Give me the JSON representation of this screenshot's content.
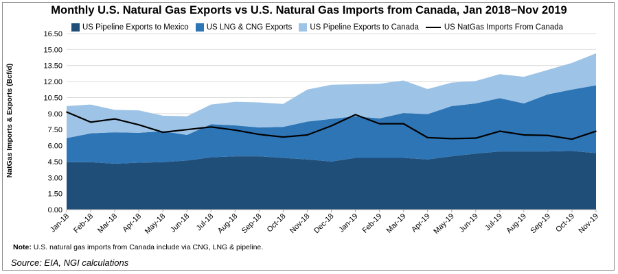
{
  "chart_data": {
    "type": "area",
    "title": "Monthly U.S. Natural Gas Exports vs U.S. Natural Gas Imports from Canada, Jan 2018−Nov 2019",
    "ylabel": "NatGas Imports & Exports (Bcf/d)",
    "xlabel": "",
    "ylim": [
      0,
      16.5
    ],
    "yticks": [
      "0.00",
      "1.50",
      "3.00",
      "4.50",
      "6.00",
      "7.50",
      "9.00",
      "10.50",
      "12.00",
      "13.50",
      "15.00",
      "16.50"
    ],
    "grid": true,
    "legend_position": "top",
    "categories": [
      "Jan-18",
      "Feb-18",
      "Mar-18",
      "Apr-18",
      "May-18",
      "Jun-18",
      "Jul-18",
      "Aug-18",
      "Sep-18",
      "Oct-18",
      "Nov-18",
      "Dec-18",
      "Jan-19",
      "Feb-19",
      "Mar-19",
      "Apr-19",
      "May-19",
      "Jun-19",
      "Jul-19",
      "Aug-19",
      "Sep-19",
      "Oct-19",
      "Nov-19"
    ],
    "stacked_series": [
      {
        "name": "US Pipeline Exports to Mexico",
        "color": "#1f4e79",
        "values": [
          4.45,
          4.45,
          4.3,
          4.4,
          4.45,
          4.6,
          4.9,
          5.0,
          5.0,
          4.85,
          4.7,
          4.5,
          4.85,
          4.85,
          4.85,
          4.7,
          5.0,
          5.25,
          5.45,
          5.45,
          5.45,
          5.5,
          5.3
        ]
      },
      {
        "name": "US LNG & CNG Exports",
        "color": "#2e75b6",
        "values": [
          2.25,
          2.7,
          2.95,
          2.8,
          2.9,
          2.4,
          3.1,
          2.9,
          2.7,
          2.9,
          3.55,
          4.0,
          3.9,
          3.7,
          4.2,
          4.25,
          4.7,
          4.7,
          5.0,
          4.5,
          5.35,
          5.75,
          6.35
        ]
      },
      {
        "name": "US Pipeline Exports to Canada",
        "color": "#9dc3e6",
        "values": [
          3.0,
          2.7,
          2.1,
          2.1,
          1.45,
          1.75,
          1.85,
          2.2,
          2.35,
          2.15,
          3.0,
          3.2,
          3.0,
          3.25,
          3.05,
          2.35,
          2.2,
          2.1,
          2.25,
          2.5,
          2.3,
          2.5,
          3.0
        ]
      }
    ],
    "line_series": {
      "name": "US NatGas Imports From Canada",
      "color": "#000000",
      "values": [
        9.15,
        8.2,
        8.5,
        7.95,
        7.25,
        7.5,
        7.75,
        7.45,
        7.05,
        6.8,
        7.0,
        7.85,
        8.9,
        8.05,
        8.05,
        6.75,
        6.65,
        6.7,
        7.35,
        7.0,
        6.95,
        6.6,
        7.35
      ]
    }
  },
  "footnote": {
    "label": "Note:",
    "text": " U.S. natural gas imports from Canada include via CNG, LNG & pipeline."
  },
  "source": "Source: EIA, NGI calculations"
}
